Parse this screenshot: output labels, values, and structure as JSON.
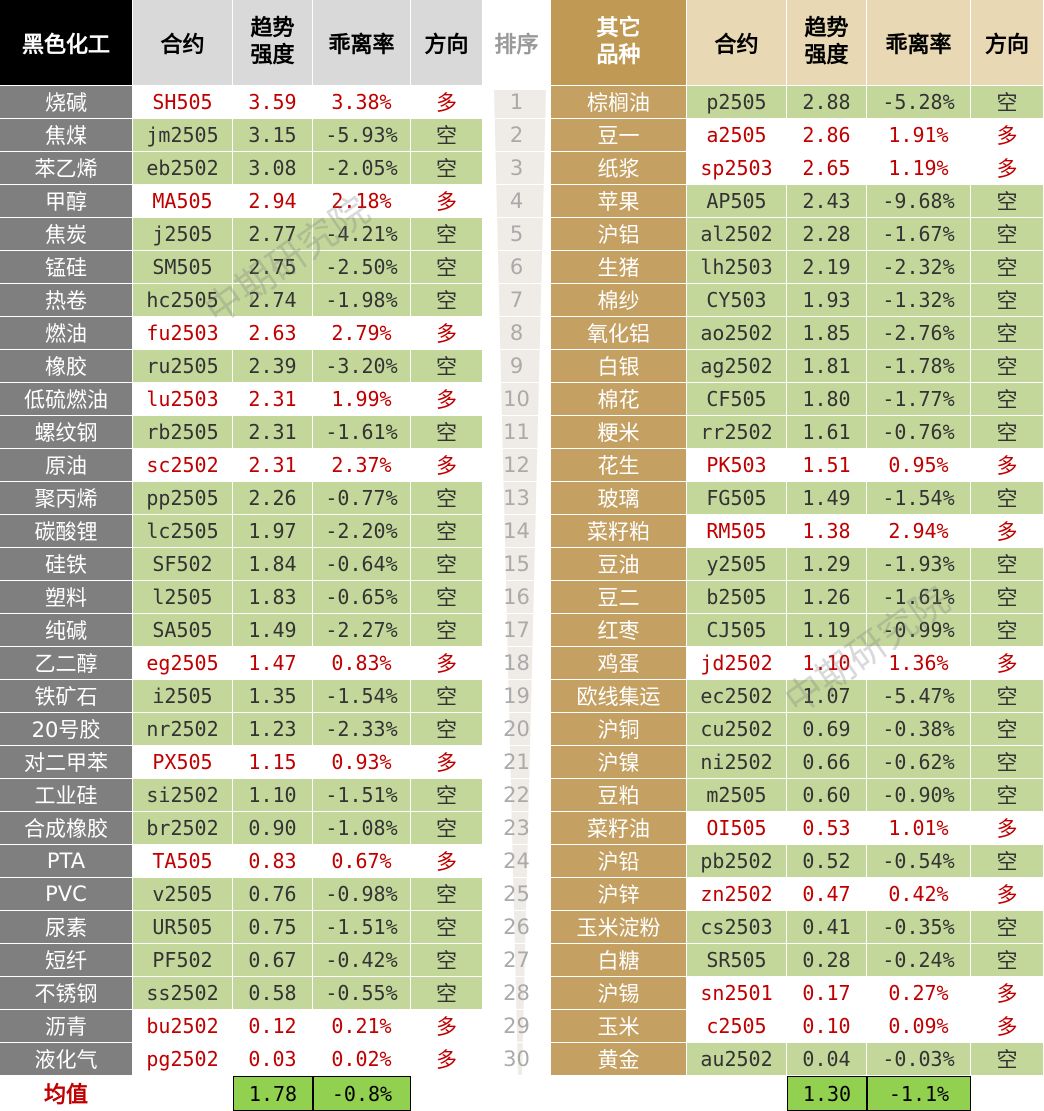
{
  "header": {
    "left": [
      "黑色化工",
      "合约",
      "趋势强度",
      "乖离率",
      "方向"
    ],
    "rank": "排序",
    "right": [
      "其它品种",
      "合约",
      "趋势强度",
      "乖离率",
      "方向"
    ]
  },
  "left_rows": [
    [
      "烧碱",
      "SH505",
      "3.59",
      "3.38%",
      "多"
    ],
    [
      "焦煤",
      "jm2505",
      "3.15",
      "-5.93%",
      "空"
    ],
    [
      "苯乙烯",
      "eb2502",
      "3.08",
      "-2.05%",
      "空"
    ],
    [
      "甲醇",
      "MA505",
      "2.94",
      "2.18%",
      "多"
    ],
    [
      "焦炭",
      "j2505",
      "2.77",
      "-4.21%",
      "空"
    ],
    [
      "锰硅",
      "SM505",
      "2.75",
      "-2.50%",
      "空"
    ],
    [
      "热卷",
      "hc2505",
      "2.74",
      "-1.98%",
      "空"
    ],
    [
      "燃油",
      "fu2503",
      "2.63",
      "2.79%",
      "多"
    ],
    [
      "橡胶",
      "ru2505",
      "2.39",
      "-3.20%",
      "空"
    ],
    [
      "低硫燃油",
      "lu2503",
      "2.31",
      "1.99%",
      "多"
    ],
    [
      "螺纹钢",
      "rb2505",
      "2.31",
      "-1.61%",
      "空"
    ],
    [
      "原油",
      "sc2502",
      "2.31",
      "2.37%",
      "多"
    ],
    [
      "聚丙烯",
      "pp2505",
      "2.26",
      "-0.77%",
      "空"
    ],
    [
      "碳酸锂",
      "lc2505",
      "1.97",
      "-2.20%",
      "空"
    ],
    [
      "硅铁",
      "SF502",
      "1.84",
      "-0.64%",
      "空"
    ],
    [
      "塑料",
      "l2505",
      "1.83",
      "-0.65%",
      "空"
    ],
    [
      "纯碱",
      "SA505",
      "1.49",
      "-2.27%",
      "空"
    ],
    [
      "乙二醇",
      "eg2505",
      "1.47",
      "0.83%",
      "多"
    ],
    [
      "铁矿石",
      "i2505",
      "1.35",
      "-1.54%",
      "空"
    ],
    [
      "20号胶",
      "nr2502",
      "1.23",
      "-2.33%",
      "空"
    ],
    [
      "对二甲苯",
      "PX505",
      "1.15",
      "0.93%",
      "多"
    ],
    [
      "工业硅",
      "si2502",
      "1.10",
      "-1.51%",
      "空"
    ],
    [
      "合成橡胶",
      "br2502",
      "0.90",
      "-1.08%",
      "空"
    ],
    [
      "PTA",
      "TA505",
      "0.83",
      "0.67%",
      "多"
    ],
    [
      "PVC",
      "v2505",
      "0.76",
      "-0.98%",
      "空"
    ],
    [
      "尿素",
      "UR505",
      "0.75",
      "-1.51%",
      "空"
    ],
    [
      "短纤",
      "PF502",
      "0.67",
      "-0.42%",
      "空"
    ],
    [
      "不锈钢",
      "ss2502",
      "0.58",
      "-0.55%",
      "空"
    ],
    [
      "沥青",
      "bu2502",
      "0.12",
      "0.21%",
      "多"
    ],
    [
      "液化气",
      "pg2502",
      "0.03",
      "0.02%",
      "多"
    ]
  ],
  "ranks": [
    1,
    2,
    3,
    4,
    5,
    6,
    7,
    8,
    9,
    10,
    11,
    12,
    13,
    14,
    15,
    16,
    17,
    18,
    19,
    20,
    21,
    22,
    23,
    24,
    25,
    26,
    27,
    28,
    29,
    30
  ],
  "right_rows": [
    [
      "棕榈油",
      "p2505",
      "2.88",
      "-5.28%",
      "空"
    ],
    [
      "豆一",
      "a2505",
      "2.86",
      "1.91%",
      "多"
    ],
    [
      "纸浆",
      "sp2503",
      "2.65",
      "1.19%",
      "多"
    ],
    [
      "苹果",
      "AP505",
      "2.43",
      "-9.68%",
      "空"
    ],
    [
      "沪铝",
      "al2502",
      "2.28",
      "-1.67%",
      "空"
    ],
    [
      "生猪",
      "lh2503",
      "2.19",
      "-2.32%",
      "空"
    ],
    [
      "棉纱",
      "CY503",
      "1.93",
      "-1.32%",
      "空"
    ],
    [
      "氧化铝",
      "ao2502",
      "1.85",
      "-2.76%",
      "空"
    ],
    [
      "白银",
      "ag2502",
      "1.81",
      "-1.78%",
      "空"
    ],
    [
      "棉花",
      "CF505",
      "1.80",
      "-1.77%",
      "空"
    ],
    [
      "粳米",
      "rr2502",
      "1.61",
      "-0.76%",
      "空"
    ],
    [
      "花生",
      "PK503",
      "1.51",
      "0.95%",
      "多"
    ],
    [
      "玻璃",
      "FG505",
      "1.49",
      "-1.54%",
      "空"
    ],
    [
      "菜籽粕",
      "RM505",
      "1.38",
      "2.94%",
      "多"
    ],
    [
      "豆油",
      "y2505",
      "1.29",
      "-1.93%",
      "空"
    ],
    [
      "豆二",
      "b2505",
      "1.26",
      "-1.61%",
      "空"
    ],
    [
      "红枣",
      "CJ505",
      "1.19",
      "-0.99%",
      "空"
    ],
    [
      "鸡蛋",
      "jd2502",
      "1.10",
      "1.36%",
      "多"
    ],
    [
      "欧线集运",
      "ec2502",
      "1.07",
      "-5.47%",
      "空"
    ],
    [
      "沪铜",
      "cu2502",
      "0.69",
      "-0.38%",
      "空"
    ],
    [
      "沪镍",
      "ni2502",
      "0.66",
      "-0.62%",
      "空"
    ],
    [
      "豆粕",
      "m2505",
      "0.60",
      "-0.90%",
      "空"
    ],
    [
      "菜籽油",
      "OI505",
      "0.53",
      "1.01%",
      "多"
    ],
    [
      "沪铅",
      "pb2502",
      "0.52",
      "-0.54%",
      "空"
    ],
    [
      "沪锌",
      "zn2502",
      "0.47",
      "0.42%",
      "多"
    ],
    [
      "玉米淀粉",
      "cs2503",
      "0.41",
      "-0.35%",
      "空"
    ],
    [
      "白糖",
      "SR505",
      "0.28",
      "-0.24%",
      "空"
    ],
    [
      "沪锡",
      "sn2501",
      "0.17",
      "0.27%",
      "多"
    ],
    [
      "玉米",
      "c2505",
      "0.10",
      "0.09%",
      "多"
    ],
    [
      "黄金",
      "au2502",
      "0.04",
      "-0.03%",
      "空"
    ]
  ],
  "footer": {
    "label": "均值",
    "left_strength": "1.78",
    "left_deviation": "-0.8%",
    "right_strength": "1.30",
    "right_deviation": "-1.1%"
  },
  "watermark": "中期研究院"
}
